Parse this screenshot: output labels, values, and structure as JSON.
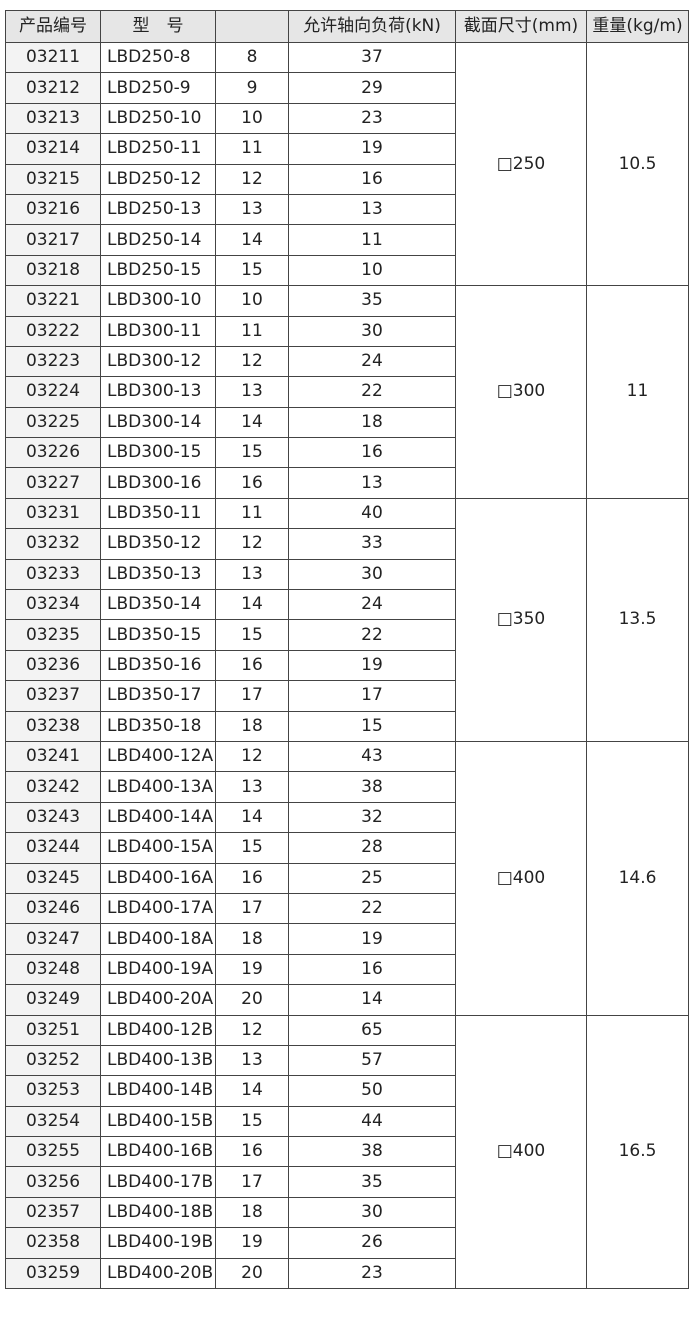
{
  "headers": [
    "产品编号",
    "型　号",
    "",
    "允许轴向负荷(kN)",
    "截面尺寸(mm)",
    "重量(kg/m)"
  ],
  "groups": [
    {
      "section": "□250",
      "weight": "10.5",
      "rows": [
        [
          "03211",
          "LBD250-8",
          "8",
          "37"
        ],
        [
          "03212",
          "LBD250-9",
          "9",
          "29"
        ],
        [
          "03213",
          "LBD250-10",
          "10",
          "23"
        ],
        [
          "03214",
          "LBD250-11",
          "11",
          "19"
        ],
        [
          "03215",
          "LBD250-12",
          "12",
          "16"
        ],
        [
          "03216",
          "LBD250-13",
          "13",
          "13"
        ],
        [
          "03217",
          "LBD250-14",
          "14",
          "11"
        ],
        [
          "03218",
          "LBD250-15",
          "15",
          "10"
        ]
      ]
    },
    {
      "section": "□300",
      "weight": "11",
      "rows": [
        [
          "03221",
          "LBD300-10",
          "10",
          "35"
        ],
        [
          "03222",
          "LBD300-11",
          "11",
          "30"
        ],
        [
          "03223",
          "LBD300-12",
          "12",
          "24"
        ],
        [
          "03224",
          "LBD300-13",
          "13",
          "22"
        ],
        [
          "03225",
          "LBD300-14",
          "14",
          "18"
        ],
        [
          "03226",
          "LBD300-15",
          "15",
          "16"
        ],
        [
          "03227",
          "LBD300-16",
          "16",
          "13"
        ]
      ]
    },
    {
      "section": "□350",
      "weight": "13.5",
      "rows": [
        [
          "03231",
          "LBD350-11",
          "11",
          "40"
        ],
        [
          "03232",
          "LBD350-12",
          "12",
          "33"
        ],
        [
          "03233",
          "LBD350-13",
          "13",
          "30"
        ],
        [
          "03234",
          "LBD350-14",
          "14",
          "24"
        ],
        [
          "03235",
          "LBD350-15",
          "15",
          "22"
        ],
        [
          "03236",
          "LBD350-16",
          "16",
          "19"
        ],
        [
          "03237",
          "LBD350-17",
          "17",
          "17"
        ],
        [
          "03238",
          "LBD350-18",
          "18",
          "15"
        ]
      ]
    },
    {
      "section": "□400",
      "weight": "14.6",
      "rows": [
        [
          "03241",
          "LBD400-12A",
          "12",
          "43"
        ],
        [
          "03242",
          "LBD400-13A",
          "13",
          "38"
        ],
        [
          "03243",
          "LBD400-14A",
          "14",
          "32"
        ],
        [
          "03244",
          "LBD400-15A",
          "15",
          "28"
        ],
        [
          "03245",
          "LBD400-16A",
          "16",
          "25"
        ],
        [
          "03246",
          "LBD400-17A",
          "17",
          "22"
        ],
        [
          "03247",
          "LBD400-18A",
          "18",
          "19"
        ],
        [
          "03248",
          "LBD400-19A",
          "19",
          "16"
        ],
        [
          "03249",
          "LBD400-20A",
          "20",
          "14"
        ]
      ]
    },
    {
      "section": "□400",
      "weight": "16.5",
      "rows": [
        [
          "03251",
          "LBD400-12B",
          "12",
          "65"
        ],
        [
          "03252",
          "LBD400-13B",
          "13",
          "57"
        ],
        [
          "03253",
          "LBD400-14B",
          "14",
          "50"
        ],
        [
          "03254",
          "LBD400-15B",
          "15",
          "44"
        ],
        [
          "03255",
          "LBD400-16B",
          "16",
          "38"
        ],
        [
          "03256",
          "LBD400-17B",
          "17",
          "35"
        ],
        [
          "02357",
          "LBD400-18B",
          "18",
          "30"
        ],
        [
          "02358",
          "LBD400-19B",
          "19",
          "26"
        ],
        [
          "03259",
          "LBD400-20B",
          "20",
          "23"
        ]
      ]
    }
  ]
}
